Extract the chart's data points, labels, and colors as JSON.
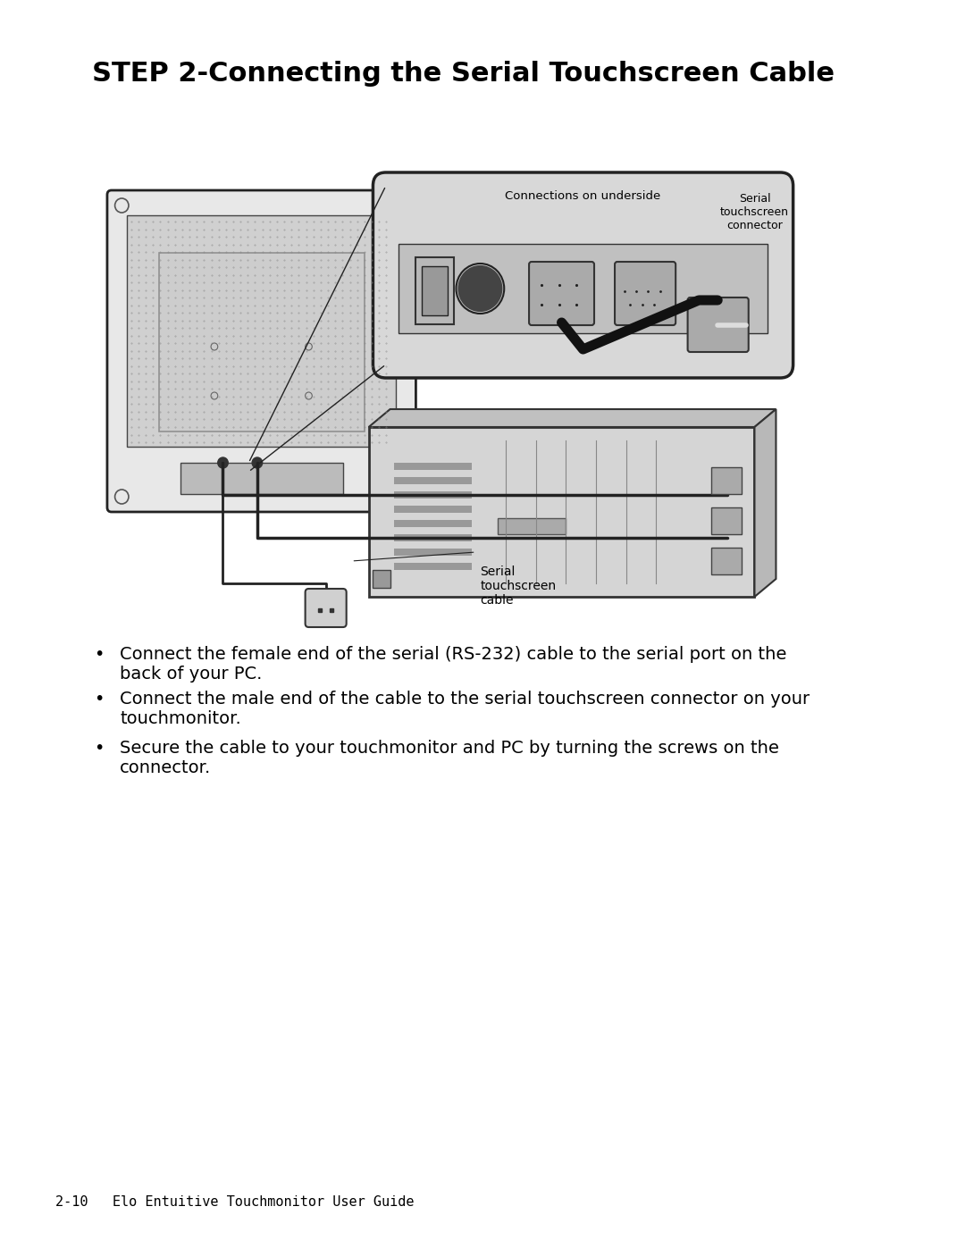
{
  "title": "STEP 2-Connecting the Serial Touchscreen Cable",
  "title_fontsize": 22,
  "title_fontweight": "bold",
  "bullet_points": [
    "Connect the female end of the serial (RS-232) cable to the serial port on the\nback of your PC.",
    "Connect the male end of the cable to the serial touchscreen connector on your\ntouchmonitor.",
    "Secure the cable to your touchmonitor and PC by turning the screws on the\nconnector."
  ],
  "bullet_fontsize": 14,
  "footer_text": "2-10   Elo Entuitive Touchmonitor User Guide",
  "footer_fontsize": 11,
  "bg_color": "#ffffff",
  "text_color": "#000000",
  "label_connections_underside": "Connections on underside",
  "label_serial_connector": "Serial\ntouchscreen\nconnector",
  "label_serial_cable": "Serial\ntouchscreen\ncable"
}
